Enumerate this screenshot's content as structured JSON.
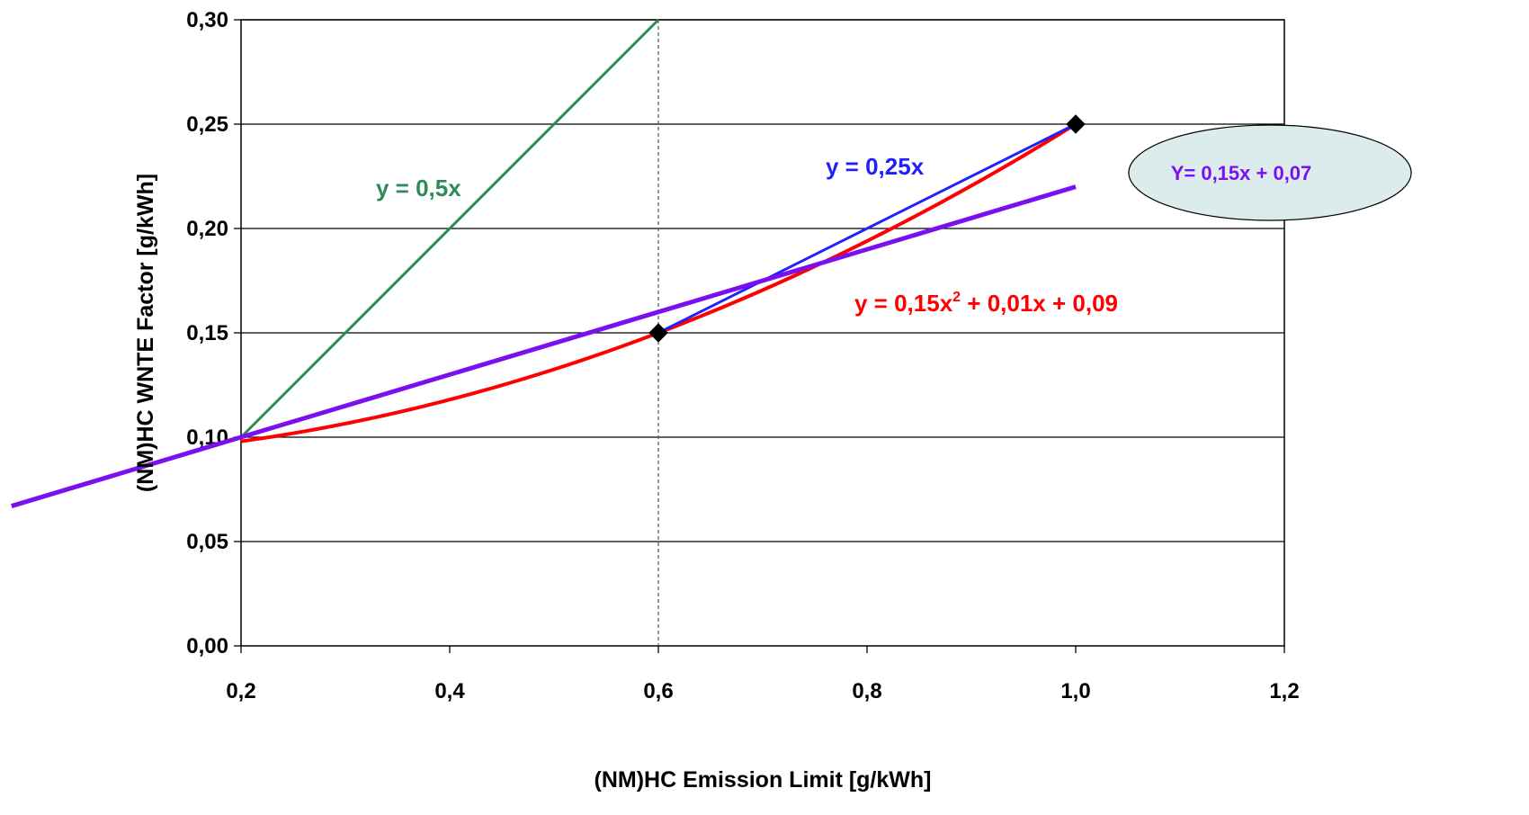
{
  "chart_data": {
    "type": "line",
    "xlabel": "(NM)HC Emission Limit [g/kWh]",
    "ylabel": "(NM)HC WNTE Factor [g/kWh]",
    "xlim": [
      0.2,
      1.2
    ],
    "ylim": [
      0.0,
      0.3
    ],
    "x_ticks": [
      "0,2",
      "0,4",
      "0,6",
      "0,8",
      "1,0",
      "1,2"
    ],
    "y_ticks": [
      "0,00",
      "0,05",
      "0,10",
      "0,15",
      "0,20",
      "0,25",
      "0,30"
    ],
    "grid": "horizontal",
    "reference_vline_x": 0.6,
    "series": [
      {
        "label": "y = 0,5x",
        "color": "#2e8b57",
        "x": [
          0.2,
          0.6
        ],
        "y": [
          0.1,
          0.3
        ]
      },
      {
        "label": "y = 0,25x",
        "color": "#1f1fff",
        "x": [
          0.6,
          1.0
        ],
        "y": [
          0.15,
          0.25
        ]
      },
      {
        "label_main": "y = 0,15x",
        "label_sup": "2",
        "label_rest": " + 0,01x + 0,09",
        "color": "#ff0000",
        "formula": {
          "a": 0.15,
          "b": 0.01,
          "c": 0.09
        },
        "x_range": [
          0.2,
          1.0
        ]
      },
      {
        "label": "Y= 0,15x + 0,07",
        "color": "#7a10f0",
        "x": [
          -0.02,
          1.0
        ],
        "y": [
          0.067,
          0.22
        ]
      }
    ],
    "markers": [
      {
        "x": 0.6,
        "y": 0.15
      },
      {
        "x": 1.0,
        "y": 0.25
      }
    ]
  },
  "colors": {
    "bubble_fill": "#dcecec",
    "bubble_text": "#7a10f0"
  }
}
